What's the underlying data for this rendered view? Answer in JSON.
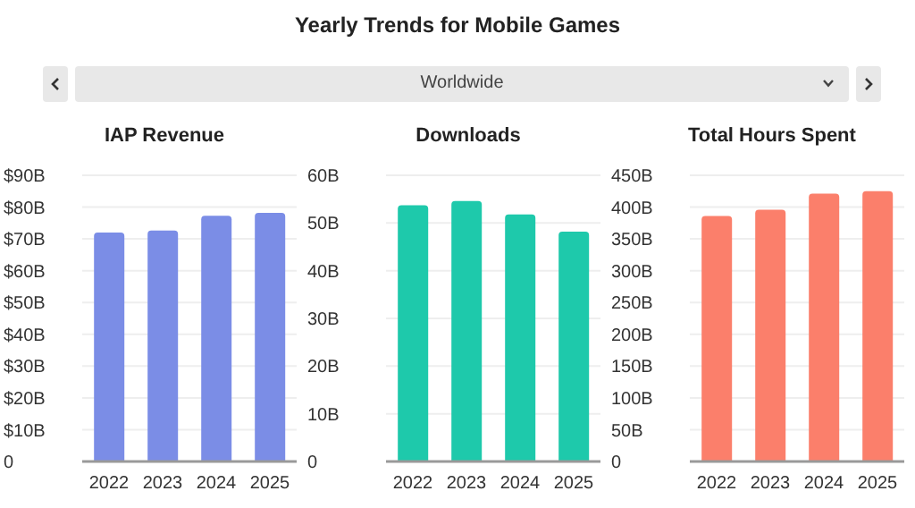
{
  "chart_data": [
    {
      "type": "other",
      "title": "Yearly Trends for Mobile Games",
      "annotations": [
        "Worldwide"
      ]
    },
    {
      "type": "bar",
      "title": "IAP Revenue",
      "categories": [
        "2022",
        "2023",
        "2024",
        "2025"
      ],
      "values": [
        72,
        72.6,
        77.3,
        78.2
      ],
      "color": "#7b8de6",
      "ylim": [
        0,
        90
      ],
      "yticks": [
        {
          "value": 0,
          "label": "0"
        },
        {
          "value": 10,
          "label": "$10B"
        },
        {
          "value": 20,
          "label": "$20B"
        },
        {
          "value": 30,
          "label": "$30B"
        },
        {
          "value": 40,
          "label": "$40B"
        },
        {
          "value": 50,
          "label": "$50B"
        },
        {
          "value": 60,
          "label": "$60B"
        },
        {
          "value": 70,
          "label": "$70B"
        },
        {
          "value": 80,
          "label": "$80B"
        },
        {
          "value": 90,
          "label": "$90B"
        }
      ],
      "grid": "y"
    },
    {
      "type": "bar",
      "title": "Downloads",
      "categories": [
        "2022",
        "2023",
        "2024",
        "2025"
      ],
      "values": [
        53.7,
        54.6,
        51.8,
        48.2
      ],
      "color": "#1ec9ab",
      "ylim": [
        0,
        60
      ],
      "yticks": [
        {
          "value": 0,
          "label": "0"
        },
        {
          "value": 10,
          "label": "10B"
        },
        {
          "value": 20,
          "label": "20B"
        },
        {
          "value": 30,
          "label": "30B"
        },
        {
          "value": 40,
          "label": "40B"
        },
        {
          "value": 50,
          "label": "50B"
        },
        {
          "value": 60,
          "label": "60B"
        }
      ],
      "grid": "y"
    },
    {
      "type": "bar",
      "title": "Total Hours Spent",
      "categories": [
        "2022",
        "2023",
        "2024",
        "2025"
      ],
      "values": [
        386,
        396,
        421,
        425
      ],
      "color": "#fb7f6b",
      "ylim": [
        0,
        450
      ],
      "yticks": [
        {
          "value": 0,
          "label": "0"
        },
        {
          "value": 50,
          "label": "50B"
        },
        {
          "value": 100,
          "label": "100B"
        },
        {
          "value": 150,
          "label": "150B"
        },
        {
          "value": 200,
          "label": "200B"
        },
        {
          "value": 250,
          "label": "250B"
        },
        {
          "value": 300,
          "label": "300B"
        },
        {
          "value": 350,
          "label": "350B"
        },
        {
          "value": 400,
          "label": "400B"
        },
        {
          "value": 450,
          "label": "450B"
        }
      ],
      "grid": "y"
    }
  ]
}
